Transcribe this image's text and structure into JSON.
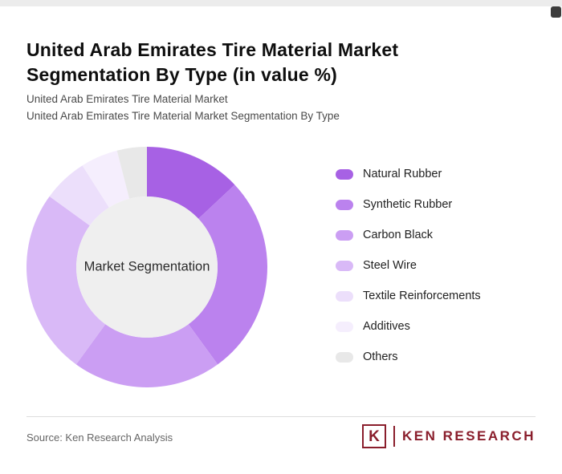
{
  "page": {
    "title": "United Arab Emirates Tire Material Market Segmentation By Type (in value %)",
    "subtitle_line1": "United Arab Emirates Tire Material Market",
    "subtitle_line2": "United Arab Emirates Tire Material Market Segmentation By Type",
    "source_text": "Source: Ken Research Analysis"
  },
  "logo": {
    "letter": "K",
    "brand": "KEN RESEARCH",
    "color": "#8a1e2c"
  },
  "chart_data": {
    "type": "pie",
    "donut": true,
    "title": "United Arab Emirates Tire Material Market Segmentation By Type (in value %)",
    "center_label": "Market Segmentation",
    "center_color": "#efefef",
    "start_angle_deg": 0,
    "direction": "clockwise",
    "legend_position": "right",
    "segments": [
      {
        "label": "Natural Rubber",
        "value": 13,
        "color": "#a761e4"
      },
      {
        "label": "Synthetic Rubber",
        "value": 27,
        "color": "#bb82ee"
      },
      {
        "label": "Carbon Black",
        "value": 20,
        "color": "#cb9ef3"
      },
      {
        "label": "Steel Wire",
        "value": 25,
        "color": "#d9b9f7"
      },
      {
        "label": "Textile Reinforcements",
        "value": 6,
        "color": "#ecdffb"
      },
      {
        "label": "Additives",
        "value": 5,
        "color": "#f5eefd"
      },
      {
        "label": "Others",
        "value": 4,
        "color": "#e8e8e8"
      }
    ]
  }
}
